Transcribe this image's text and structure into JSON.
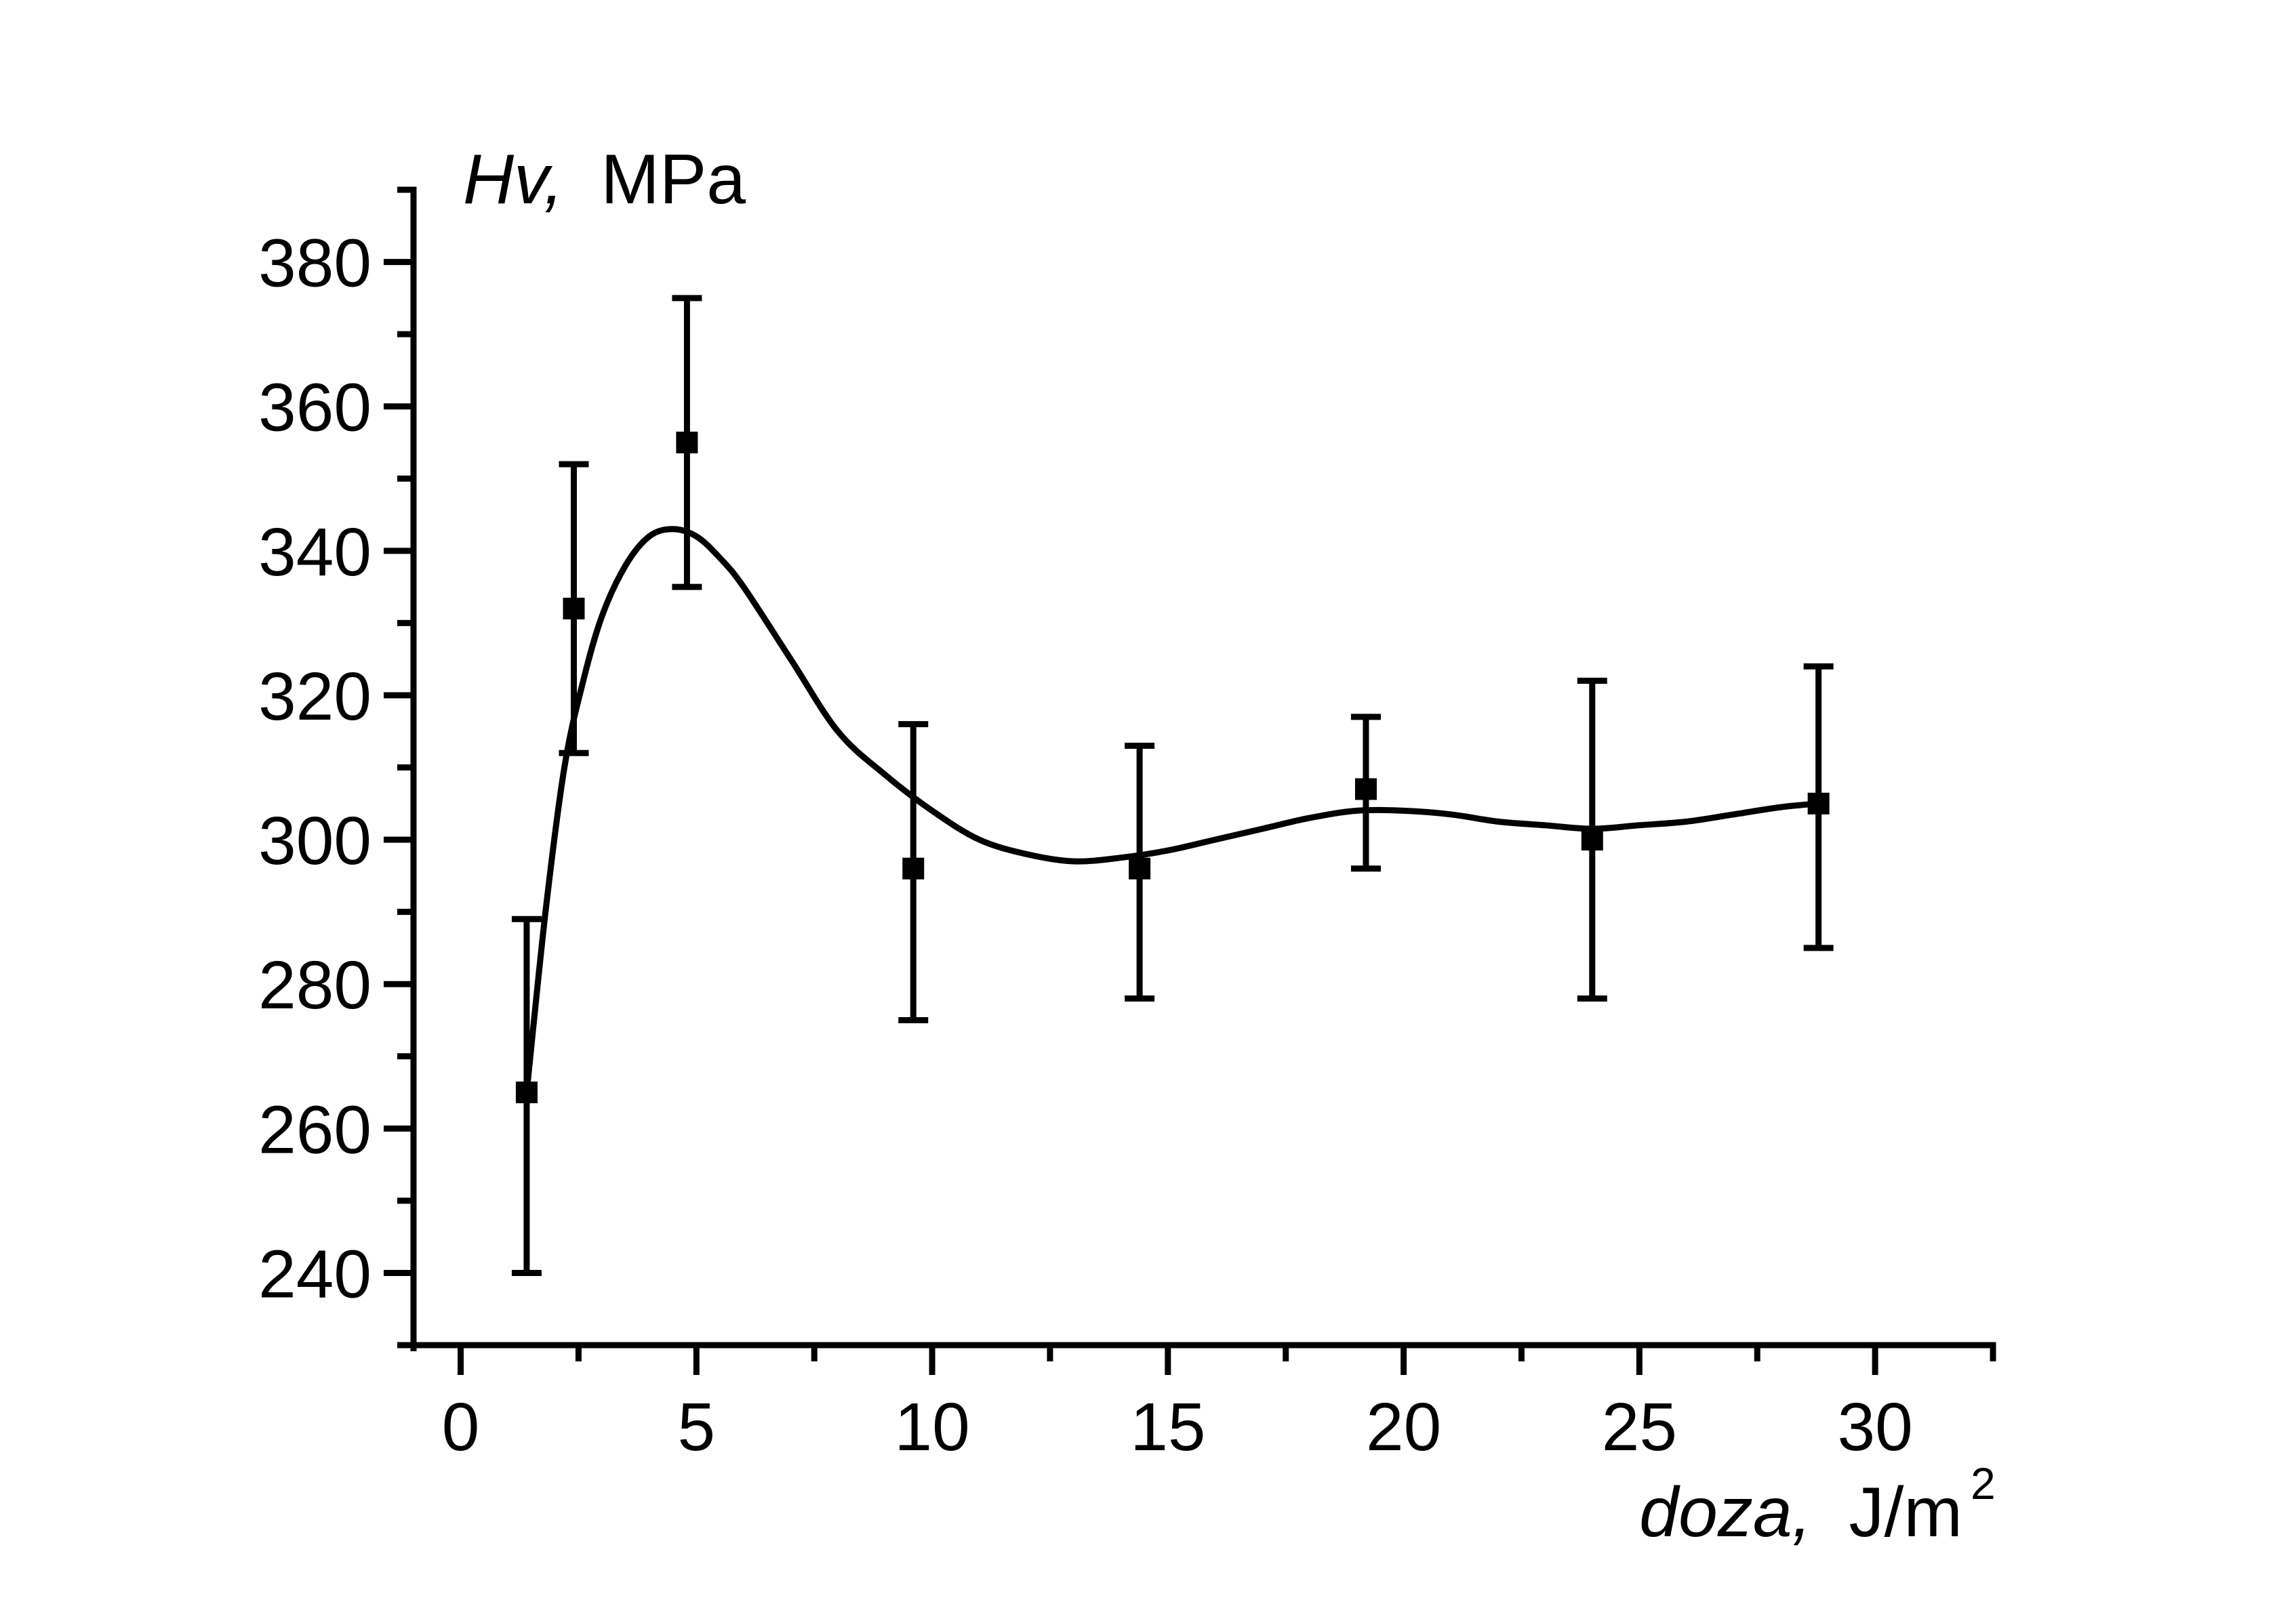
{
  "chart_data": {
    "type": "scatter",
    "xaxis": {
      "label_italic": "doza,",
      "label_unit": "J/m",
      "label_superscript": "2",
      "min": -1,
      "max": 32.5,
      "ticks": [
        0,
        5,
        10,
        15,
        20,
        25,
        30
      ],
      "minor_step": 2.5
    },
    "yaxis": {
      "label_italic": "Hv,",
      "label_unit": "MPa",
      "min": 230,
      "max": 390,
      "ticks": [
        240,
        260,
        280,
        300,
        320,
        340,
        360,
        380
      ],
      "minor_step": 10
    },
    "grid": false,
    "series": [
      {
        "marker": "square",
        "x": [
          1.4,
          2.4,
          4.8,
          9.6,
          14.4,
          19.2,
          24.0,
          28.8
        ],
        "y": [
          265,
          332,
          355,
          296,
          296,
          307,
          300,
          305
        ],
        "error_low": [
          240,
          312,
          335,
          275,
          278,
          296,
          278,
          285
        ],
        "error_high": [
          289,
          352,
          375,
          316,
          313,
          317,
          322,
          324
        ]
      }
    ],
    "fit_curve": {
      "x": [
        1.4,
        1.8,
        2.2,
        2.6,
        3.0,
        3.5,
        4.0,
        4.5,
        5.0,
        5.5,
        6.0,
        7.0,
        8.0,
        9.0,
        10.0,
        11.0,
        12.0,
        13.0,
        14.0,
        15.0,
        16.0,
        17.0,
        18.0,
        19.0,
        20.0,
        21.0,
        22.0,
        23.0,
        24.0,
        25.0,
        26.0,
        27.0,
        28.0,
        28.8
      ],
      "y": [
        265,
        290,
        310,
        322,
        331,
        338,
        342,
        343,
        342,
        339,
        335,
        325,
        315,
        309,
        304,
        300,
        298,
        297,
        297.5,
        298.5,
        300,
        301.5,
        303,
        304,
        304,
        303.5,
        302.5,
        302,
        301.5,
        302,
        302.5,
        303.5,
        304.5,
        305
      ]
    }
  }
}
